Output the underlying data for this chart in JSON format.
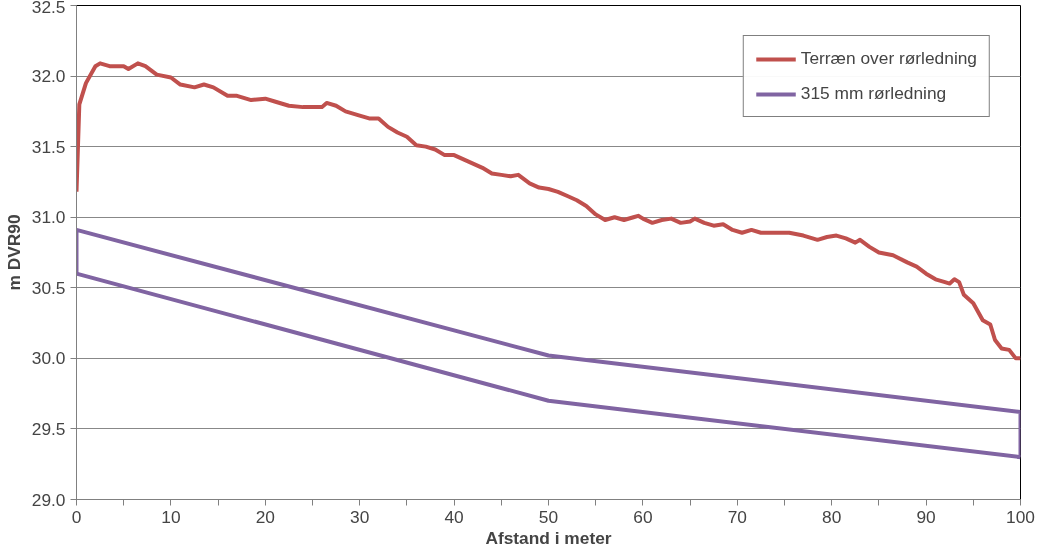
{
  "chart_data": {
    "type": "line",
    "xlabel": "Afstand i meter",
    "ylabel": "m DVR90",
    "xlim": [
      0,
      100
    ],
    "ylim": [
      29.0,
      32.5
    ],
    "xticks": [
      0,
      {
        "value": 5,
        "label": null
      },
      10,
      {
        "value": 15,
        "label": null
      },
      20,
      {
        "value": 25,
        "label": null
      },
      30,
      {
        "value": 35,
        "label": null
      },
      40,
      {
        "value": 45,
        "label": null
      },
      50,
      {
        "value": 55,
        "label": null
      },
      60,
      {
        "value": 65,
        "label": null
      },
      70,
      {
        "value": 75,
        "label": null
      },
      80,
      {
        "value": 85,
        "label": null
      },
      90,
      {
        "value": 95,
        "label": null
      },
      100
    ],
    "yticks": [
      {
        "value": 29.0,
        "label": "29.0"
      },
      29.5,
      {
        "value": 30.0,
        "label": "30.0"
      },
      30.5,
      {
        "value": 31.0,
        "label": "31.0"
      },
      31.5,
      {
        "value": 32.0,
        "label": "32.0"
      },
      32.5
    ],
    "grid": "y",
    "legend": "top right",
    "marker": "none",
    "line_style": "solid",
    "series": [
      {
        "name": "Terræn over rørledning",
        "color": "#c0504d",
        "x": [
          0,
          0.3,
          1,
          2,
          2.5,
          3.5,
          5,
          5.5,
          6.5,
          7.3,
          8.5,
          10,
          11,
          12.5,
          13.5,
          14.5,
          16,
          17,
          18.5,
          20,
          21,
          22.5,
          24,
          25,
          26,
          26.5,
          27.5,
          28.5,
          30,
          31,
          32,
          33,
          34,
          35,
          36,
          37,
          38,
          39,
          40,
          41,
          42,
          43,
          44,
          45,
          46,
          46.8,
          48,
          49,
          50,
          51,
          52,
          53,
          54,
          55,
          56,
          57,
          58,
          59,
          59.5,
          60,
          61,
          62,
          63,
          64,
          65,
          65.5,
          66.5,
          67.5,
          68.5,
          69.5,
          70.5,
          71.5,
          72.5,
          74,
          75.5,
          77,
          78.5,
          79.5,
          80.5,
          81.5,
          82.5,
          83,
          84,
          85,
          86.5,
          88,
          89,
          90,
          91,
          92,
          92.5,
          93,
          93.5,
          94,
          95,
          95.5,
          96,
          96.8,
          97.3,
          98,
          98.8,
          99.5,
          100
        ],
        "values": [
          31.18,
          31.8,
          31.95,
          32.07,
          32.09,
          32.07,
          32.07,
          32.05,
          32.09,
          32.07,
          32.01,
          31.99,
          31.94,
          31.92,
          31.94,
          31.92,
          31.86,
          31.86,
          31.83,
          31.84,
          31.82,
          31.79,
          31.78,
          31.78,
          31.78,
          31.81,
          31.79,
          31.75,
          31.72,
          31.7,
          31.7,
          31.64,
          31.6,
          31.57,
          31.51,
          31.5,
          31.48,
          31.44,
          31.44,
          31.41,
          31.38,
          31.35,
          31.31,
          31.3,
          31.29,
          31.3,
          31.24,
          31.21,
          31.2,
          31.18,
          31.15,
          31.12,
          31.08,
          31.02,
          30.98,
          31.0,
          30.98,
          31.0,
          31.01,
          30.99,
          30.96,
          30.98,
          30.99,
          30.96,
          30.97,
          30.99,
          30.96,
          30.94,
          30.95,
          30.91,
          30.89,
          30.91,
          30.89,
          30.89,
          30.89,
          30.87,
          30.84,
          30.86,
          30.87,
          30.85,
          30.82,
          30.84,
          30.79,
          30.75,
          30.73,
          30.68,
          30.65,
          30.6,
          30.56,
          30.54,
          30.53,
          30.56,
          30.54,
          30.45,
          30.39,
          30.33,
          30.27,
          30.24,
          30.13,
          30.07,
          30.06,
          30.0,
          30.0
        ]
      },
      {
        "name": "315 mm rørledning",
        "color": "#8064a2",
        "x": [
          0,
          0,
          50,
          100,
          100
        ],
        "values": [
          30.6,
          30.91,
          30.02,
          29.62,
          29.3
        ]
      },
      {
        "color": "#8064a2",
        "x": [
          0,
          50,
          100
        ],
        "values": [
          30.6,
          29.7,
          29.3
        ]
      }
    ]
  }
}
